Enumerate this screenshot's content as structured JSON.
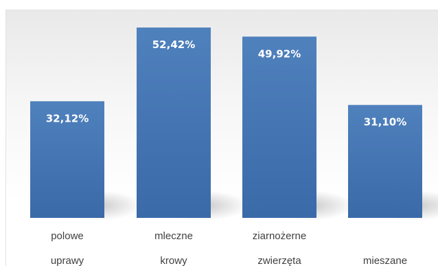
{
  "chart_data": {
    "type": "bar",
    "categories": [
      [
        "polowe",
        "uprawy"
      ],
      [
        "mleczne",
        "krowy"
      ],
      [
        "ziarnożerne",
        "zwierzęta"
      ],
      [
        "",
        "mieszane"
      ]
    ],
    "values": [
      32.12,
      52.42,
      49.92,
      31.1
    ],
    "data_labels": [
      "32,12%",
      "52,42%",
      "49,92%",
      "31,10%"
    ],
    "title": "",
    "xlabel": "",
    "ylabel": "",
    "ylim": [
      0,
      60
    ],
    "grid": false,
    "legend": "none",
    "colors": {
      "bar_top": "#4f81bd",
      "bar_bottom": "#3a6aa8",
      "label_text": "#ffffff",
      "category_text": "#404040"
    }
  }
}
